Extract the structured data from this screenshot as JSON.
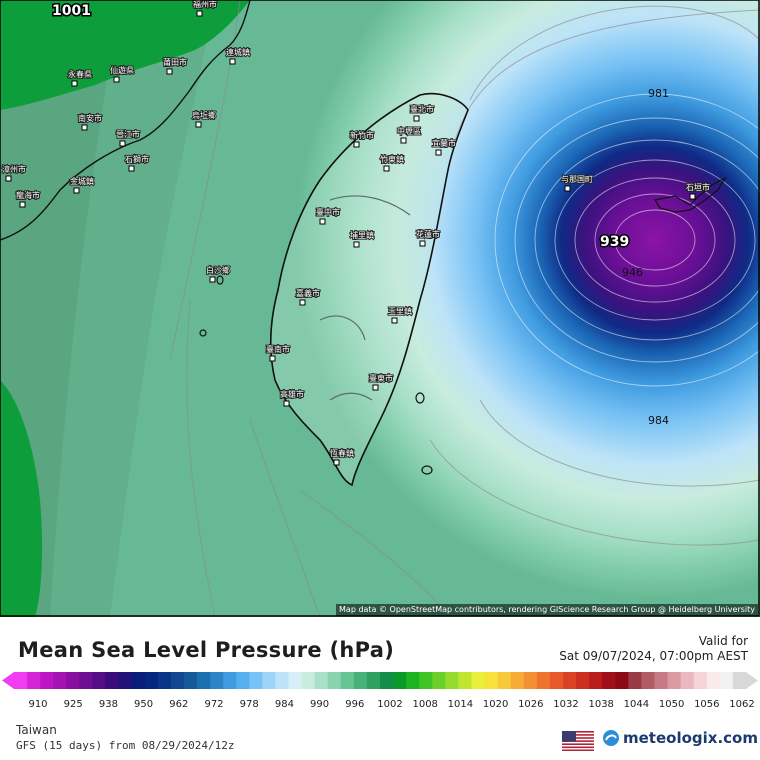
{
  "map": {
    "top_left_value": "1001",
    "center_value": "939",
    "isobar_labels": [
      "981",
      "946",
      "984"
    ],
    "cities": [
      "福州市",
      "連城鎮",
      "永春県",
      "仙遊県",
      "莆田市",
      "南安市",
      "晉江市",
      "烏坵鄉",
      "石獅市",
      "漳州市",
      "龍海市",
      "金城鎮",
      "臺北市",
      "中壢區",
      "新竹市",
      "竹東鎮",
      "宜蘭市",
      "臺中市",
      "埔里鎮",
      "花蓮市",
      "白沙鄉",
      "嘉義市",
      "玉里鎮",
      "臺南市",
      "高雄市",
      "臺東市",
      "恆春鎮",
      "与那国町",
      "石垣市"
    ],
    "attribution": "Map data © OpenStreetMap contributors, rendering GIScience Research Group @ Heidelberg University"
  },
  "header": {
    "title": "Mean Sea Level Pressure (hPa)",
    "valid_label": "Valid for",
    "valid_time": "Sat 09/07/2024, 07:00pm AEST"
  },
  "colorbar": {
    "ticks": [
      "910",
      "925",
      "938",
      "950",
      "962",
      "972",
      "978",
      "984",
      "990",
      "996",
      "1002",
      "1008",
      "1014",
      "1020",
      "1026",
      "1032",
      "1038",
      "1044",
      "1050",
      "1056",
      "1062"
    ],
    "colors": [
      "#f23cf2",
      "#d524d8",
      "#bc16c4",
      "#a511b2",
      "#8a0fa0",
      "#6f0e93",
      "#530d86",
      "#3a0b7a",
      "#22127a",
      "#0a1c79",
      "#06257f",
      "#0a3488",
      "#114690",
      "#145a99",
      "#1a6fae",
      "#2d85c8",
      "#3f9be0",
      "#56b0f0",
      "#78c2f5",
      "#9dd4f8",
      "#bde3f8",
      "#d6eef7",
      "#c8ecde",
      "#a8e0c8",
      "#88d3b0",
      "#66c494",
      "#49b27a",
      "#2ea060",
      "#138e48",
      "#0a9a2a",
      "#1cb41e",
      "#3fc426",
      "#6bd02a",
      "#95dc2e",
      "#c2e630",
      "#eaf03a",
      "#f6e23a",
      "#f6c83a",
      "#f6ac36",
      "#f39033",
      "#ee742e",
      "#e65a28",
      "#db4224",
      "#cc2e20",
      "#b91c1c",
      "#a1101a",
      "#8b0a16",
      "#9a3a44",
      "#b25c66",
      "#c77a84",
      "#db9aa2",
      "#eab8be",
      "#f5d4d8",
      "#faeaec",
      "#f2f2f2",
      "#d8d8d8"
    ]
  },
  "footer": {
    "region": "Taiwan",
    "model": "GFS (15 days) from 08/29/2024/12z",
    "brand": "meteologix.com"
  }
}
